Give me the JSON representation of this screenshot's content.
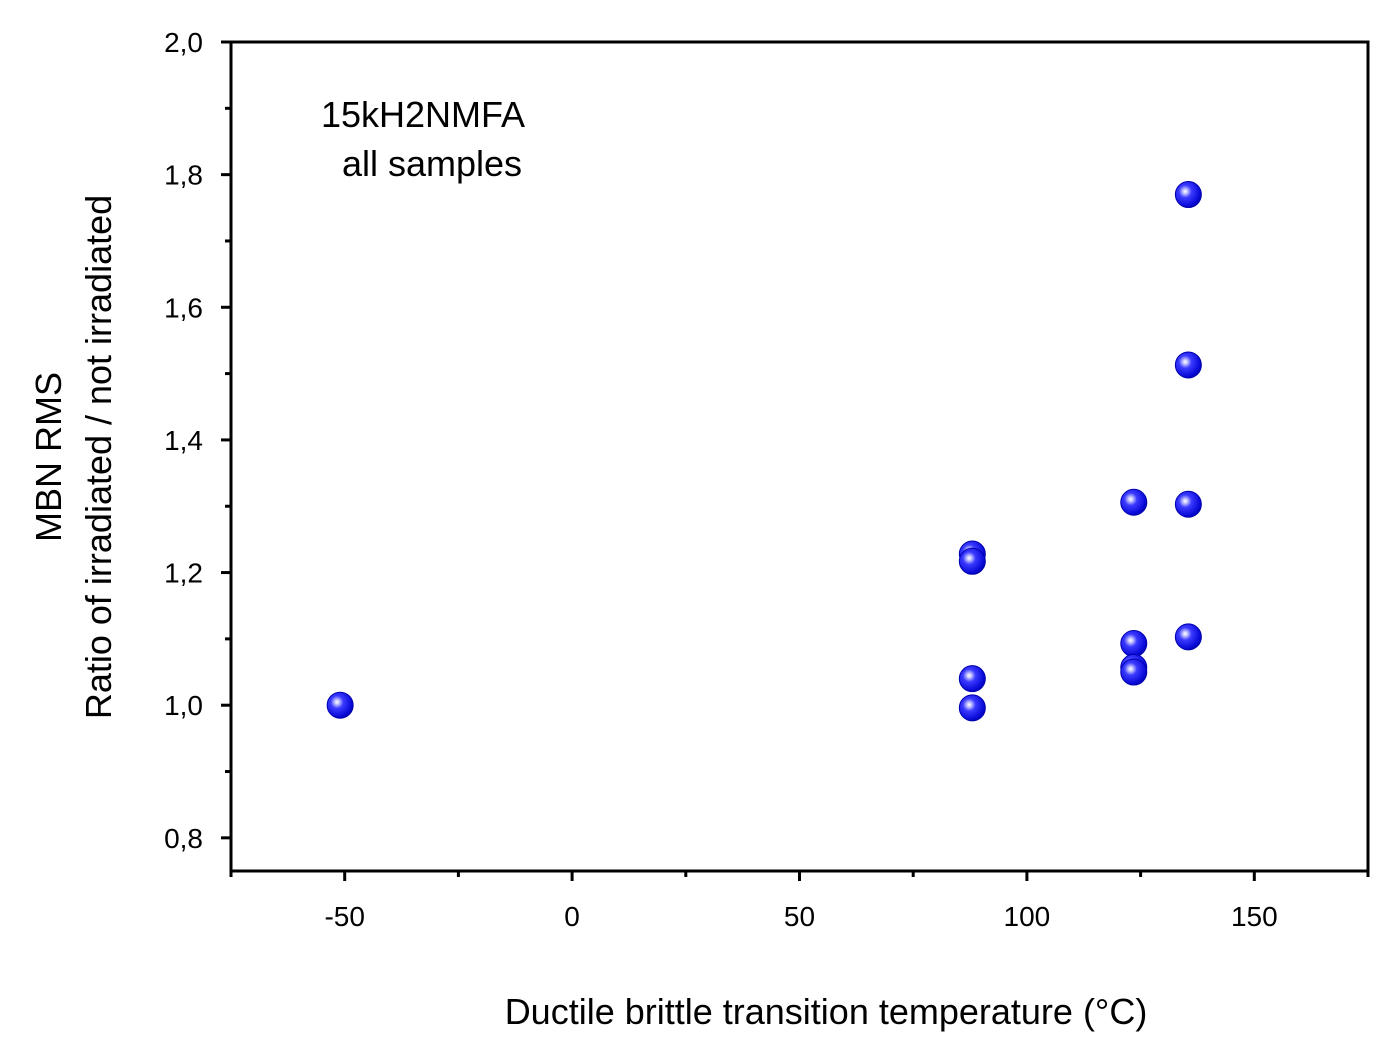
{
  "chart_data": {
    "type": "scatter",
    "xlabel": "Ductile brittle transition temperature  (°C)",
    "ylabel_line1": "MBN  RMS",
    "ylabel_line2": "Ratio of irradiated / not irradiated",
    "annotation_line1": "15kH2NMFA",
    "annotation_line2": "all samples",
    "xlim": [
      -75,
      175
    ],
    "ylim": [
      0.75,
      2.0
    ],
    "x_ticks": [
      -50,
      0,
      50,
      100,
      150
    ],
    "x_tick_labels": [
      "-50",
      "0",
      "50",
      "100",
      "150"
    ],
    "x_minor_ticks": [
      -75,
      -25,
      25,
      75,
      125,
      175
    ],
    "y_ticks": [
      0.8,
      1.0,
      1.2,
      1.4,
      1.6,
      1.8,
      2.0
    ],
    "y_tick_labels": [
      "0,8",
      "1,0",
      "1,2",
      "1,4",
      "1,6",
      "1,8",
      "2,0"
    ],
    "y_minor_ticks": [
      0.9,
      1.1,
      1.3,
      1.5,
      1.7,
      1.9
    ],
    "grid": false,
    "marker_color": "#1010e8",
    "points": [
      {
        "x": -51,
        "y": 1.0
      },
      {
        "x": 88,
        "y": 1.228
      },
      {
        "x": 88,
        "y": 1.217
      },
      {
        "x": 88,
        "y": 1.04
      },
      {
        "x": 88,
        "y": 0.996
      },
      {
        "x": 123.5,
        "y": 1.306
      },
      {
        "x": 123.5,
        "y": 1.093
      },
      {
        "x": 123.5,
        "y": 1.057
      },
      {
        "x": 123.5,
        "y": 1.05
      },
      {
        "x": 135.5,
        "y": 1.77
      },
      {
        "x": 135.5,
        "y": 1.513
      },
      {
        "x": 135.5,
        "y": 1.303
      },
      {
        "x": 135.5,
        "y": 1.103
      }
    ]
  }
}
